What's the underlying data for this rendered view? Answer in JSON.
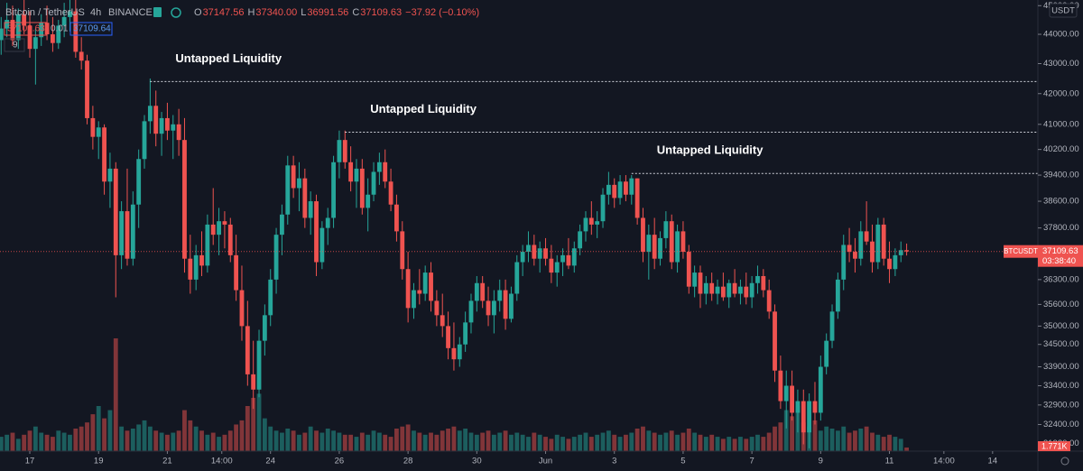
{
  "chart_data": {
    "type": "candlestick",
    "header": {
      "symbol": "Bitcoin / TetherUS",
      "interval": "4h",
      "exchange": "BINANCE",
      "ohlc_labels": [
        "O",
        "H",
        "L",
        "C"
      ],
      "ohlc_values": [
        "37147.56",
        "37340.00",
        "36991.56",
        "37109.63"
      ],
      "change": "−37.92 (−0.10%)",
      "bid": "37109.63",
      "spread": "0.01",
      "ask": "37109.64",
      "indicators": "9"
    },
    "currency": "USDT",
    "price_label": {
      "symbol": "BTCUSDT",
      "price": "37109.63",
      "countdown": "03:38:40"
    },
    "volume_label": "1.771K",
    "up_color": "#26a69a",
    "down_color": "#ef5350",
    "log_scale": true,
    "ylim": [
      31730,
      45200
    ],
    "xlim": [
      -0.2,
      180.9
    ],
    "vlim": [
      0,
      220
    ],
    "yticks": [
      {
        "value": 45000,
        "label": "45000.00"
      },
      {
        "value": 44000,
        "label": "44000.00"
      },
      {
        "value": 43000,
        "label": "43000.00"
      },
      {
        "value": 42000,
        "label": "42000.00"
      },
      {
        "value": 41000,
        "label": "41000.00"
      },
      {
        "value": 40200,
        "label": "40200.00"
      },
      {
        "value": 39400,
        "label": "39400.00"
      },
      {
        "value": 38600,
        "label": "38600.00"
      },
      {
        "value": 37800,
        "label": "37800.00"
      },
      {
        "value": 36300,
        "label": "36300.00"
      },
      {
        "value": 35600,
        "label": "35600.00"
      },
      {
        "value": 35000,
        "label": "35000.00"
      },
      {
        "value": 34500,
        "label": "34500.00"
      },
      {
        "value": 33900,
        "label": "33900.00"
      },
      {
        "value": 33400,
        "label": "33400.00"
      },
      {
        "value": 32900,
        "label": "32900.00"
      },
      {
        "value": 32400,
        "label": "32400.00"
      },
      {
        "value": 31920,
        "label": "31920.00"
      }
    ],
    "xticks": [
      {
        "value": 5,
        "label": "17"
      },
      {
        "value": 17,
        "label": "19"
      },
      {
        "value": 29,
        "label": "21"
      },
      {
        "value": 38.5,
        "label": "14:00"
      },
      {
        "value": 47,
        "label": "24"
      },
      {
        "value": 59,
        "label": "26"
      },
      {
        "value": 71,
        "label": "28"
      },
      {
        "value": 83,
        "label": "30"
      },
      {
        "value": 95,
        "label": "Jun"
      },
      {
        "value": 107,
        "label": "3"
      },
      {
        "value": 119,
        "label": "5"
      },
      {
        "value": 131,
        "label": "7"
      },
      {
        "value": 143,
        "label": "9"
      },
      {
        "value": 155,
        "label": "11"
      },
      {
        "value": 164.5,
        "label": "14:00"
      },
      {
        "value": 173,
        "label": "14"
      }
    ],
    "annotations": [
      {
        "text": "Untapped Liquidity",
        "level": 42400,
        "start": 26
      },
      {
        "text": "Untapped Liquidity",
        "level": 40750,
        "start": 60
      },
      {
        "text": "Untapped Liquidity",
        "level": 39450,
        "start": 110
      }
    ],
    "ohlc": [
      [
        43800,
        44600,
        43300,
        44200
      ],
      [
        44200,
        45100,
        43900,
        44500
      ],
      [
        44500,
        45000,
        43600,
        43800
      ],
      [
        43800,
        44900,
        43500,
        44700
      ],
      [
        44700,
        45200,
        44000,
        44300
      ],
      [
        44300,
        44800,
        43200,
        43500
      ],
      [
        43500,
        44200,
        42300,
        43900
      ],
      [
        43900,
        44700,
        43600,
        44400
      ],
      [
        44400,
        45000,
        43800,
        44000
      ],
      [
        44000,
        44600,
        43400,
        43700
      ],
      [
        43700,
        44500,
        43500,
        44300
      ],
      [
        44300,
        45100,
        43900,
        44600
      ],
      [
        44600,
        45200,
        44100,
        44800
      ],
      [
        44800,
        45200,
        43200,
        43400
      ],
      [
        43400,
        43900,
        42800,
        43100
      ],
      [
        43100,
        43300,
        41000,
        41200
      ],
      [
        41200,
        41600,
        40200,
        40600
      ],
      [
        40600,
        41100,
        39900,
        40900
      ],
      [
        40900,
        41000,
        38800,
        39200
      ],
      [
        39200,
        40100,
        38400,
        39600
      ],
      [
        39600,
        39800,
        35800,
        37000
      ],
      [
        37000,
        38600,
        36600,
        38300
      ],
      [
        38300,
        39600,
        36700,
        36900
      ],
      [
        36900,
        38900,
        36700,
        38500
      ],
      [
        38500,
        40200,
        37800,
        39900
      ],
      [
        39900,
        41300,
        39600,
        41100
      ],
      [
        41100,
        42500,
        40700,
        41600
      ],
      [
        41600,
        42100,
        40300,
        40700
      ],
      [
        40700,
        41400,
        40000,
        41200
      ],
      [
        41200,
        41700,
        40500,
        40800
      ],
      [
        40800,
        41300,
        39900,
        41000
      ],
      [
        41000,
        41500,
        40000,
        40500
      ],
      [
        40500,
        41200,
        36500,
        36900
      ],
      [
        36900,
        37600,
        35900,
        36300
      ],
      [
        36300,
        37300,
        36000,
        37000
      ],
      [
        37000,
        37700,
        36400,
        36700
      ],
      [
        36700,
        38200,
        36500,
        37900
      ],
      [
        37900,
        39000,
        37300,
        37600
      ],
      [
        37600,
        38400,
        37000,
        38000
      ],
      [
        38000,
        38300,
        37200,
        37900
      ],
      [
        37900,
        38100,
        36800,
        37000
      ],
      [
        37000,
        37600,
        35700,
        36000
      ],
      [
        36000,
        36700,
        34600,
        35000
      ],
      [
        35000,
        35700,
        33400,
        33700
      ],
      [
        33700,
        34600,
        32800,
        33300
      ],
      [
        33300,
        34900,
        33100,
        34600
      ],
      [
        34600,
        35600,
        34200,
        35300
      ],
      [
        35300,
        36600,
        35000,
        36300
      ],
      [
        36300,
        37800,
        35900,
        37600
      ],
      [
        37600,
        38500,
        37000,
        38200
      ],
      [
        38200,
        40000,
        37900,
        39700
      ],
      [
        39700,
        40000,
        38700,
        39000
      ],
      [
        39000,
        39800,
        38300,
        39300
      ],
      [
        39300,
        39600,
        37800,
        38100
      ],
      [
        38100,
        38900,
        37600,
        38600
      ],
      [
        38600,
        38800,
        36400,
        36800
      ],
      [
        36800,
        38000,
        36600,
        37800
      ],
      [
        37800,
        38400,
        37300,
        38100
      ],
      [
        38100,
        40000,
        37800,
        39800
      ],
      [
        39800,
        40800,
        39300,
        40500
      ],
      [
        40500,
        40800,
        39600,
        39800
      ],
      [
        39800,
        40300,
        38900,
        39200
      ],
      [
        39200,
        39900,
        38400,
        39600
      ],
      [
        39600,
        39900,
        38200,
        38400
      ],
      [
        38400,
        39300,
        37700,
        38800
      ],
      [
        38800,
        39800,
        38600,
        39500
      ],
      [
        39500,
        40100,
        39100,
        39800
      ],
      [
        39800,
        40200,
        39000,
        39200
      ],
      [
        39200,
        39600,
        38300,
        38500
      ],
      [
        38500,
        38800,
        37400,
        37700
      ],
      [
        37700,
        38000,
        36300,
        36600
      ],
      [
        36600,
        37100,
        35100,
        35500
      ],
      [
        35500,
        36200,
        35200,
        36000
      ],
      [
        36000,
        36600,
        35600,
        35900
      ],
      [
        35900,
        36700,
        35700,
        36500
      ],
      [
        36500,
        36800,
        35400,
        35700
      ],
      [
        35700,
        36000,
        35000,
        35300
      ],
      [
        35300,
        35900,
        34700,
        35000
      ],
      [
        35000,
        35400,
        34100,
        34400
      ],
      [
        34400,
        35100,
        33800,
        34100
      ],
      [
        34100,
        34700,
        33900,
        34500
      ],
      [
        34500,
        35400,
        34300,
        35100
      ],
      [
        35100,
        35900,
        34800,
        35700
      ],
      [
        35700,
        36400,
        35400,
        36200
      ],
      [
        36200,
        36400,
        35500,
        35700
      ],
      [
        35700,
        36100,
        35000,
        35300
      ],
      [
        35300,
        36000,
        34800,
        35700
      ],
      [
        35700,
        36300,
        35400,
        36000
      ],
      [
        36000,
        36300,
        34900,
        35200
      ],
      [
        35200,
        36100,
        35100,
        35900
      ],
      [
        35900,
        37000,
        35700,
        36800
      ],
      [
        36800,
        37300,
        36400,
        37100
      ],
      [
        37100,
        37700,
        36800,
        37300
      ],
      [
        37300,
        37600,
        36700,
        36900
      ],
      [
        36900,
        37400,
        36500,
        37200
      ],
      [
        37200,
        37500,
        36700,
        36900
      ],
      [
        36900,
        37300,
        36200,
        36500
      ],
      [
        36500,
        37000,
        36100,
        36800
      ],
      [
        36800,
        37200,
        36400,
        37000
      ],
      [
        37000,
        37500,
        36600,
        36700
      ],
      [
        36700,
        37400,
        36500,
        37200
      ],
      [
        37200,
        37900,
        37000,
        37700
      ],
      [
        37700,
        38300,
        37400,
        38100
      ],
      [
        38100,
        38600,
        37600,
        37900
      ],
      [
        37900,
        38300,
        37500,
        38000
      ],
      [
        38000,
        39000,
        37800,
        38800
      ],
      [
        38800,
        39500,
        38500,
        39100
      ],
      [
        39100,
        39300,
        38400,
        38700
      ],
      [
        38700,
        39400,
        38500,
        39200
      ],
      [
        39200,
        39400,
        38600,
        38800
      ],
      [
        38800,
        39400,
        38500,
        39300
      ],
      [
        39300,
        39300,
        37900,
        38100
      ],
      [
        38100,
        38400,
        36800,
        37100
      ],
      [
        37100,
        37900,
        36300,
        37600
      ],
      [
        37600,
        38100,
        36600,
        36900
      ],
      [
        36900,
        37700,
        36700,
        37500
      ],
      [
        37500,
        38300,
        37200,
        38000
      ],
      [
        38000,
        38200,
        36600,
        36800
      ],
      [
        36800,
        37900,
        36500,
        37700
      ],
      [
        37700,
        38000,
        36900,
        37100
      ],
      [
        37100,
        37300,
        35900,
        36100
      ],
      [
        36100,
        36700,
        35800,
        36500
      ],
      [
        36500,
        36700,
        35500,
        35900
      ],
      [
        35900,
        36400,
        35600,
        36200
      ],
      [
        36200,
        36500,
        35700,
        35900
      ],
      [
        35900,
        36300,
        35600,
        36100
      ],
      [
        36100,
        36500,
        35700,
        35800
      ],
      [
        35800,
        36300,
        35500,
        36200
      ],
      [
        36200,
        36600,
        35800,
        35900
      ],
      [
        35900,
        36300,
        35600,
        36100
      ],
      [
        36100,
        36500,
        35600,
        35800
      ],
      [
        35800,
        36400,
        35500,
        36200
      ],
      [
        36200,
        36700,
        35900,
        36400
      ],
      [
        36400,
        36600,
        35800,
        36000
      ],
      [
        36000,
        36300,
        35200,
        35400
      ],
      [
        35400,
        35600,
        33500,
        33800
      ],
      [
        33800,
        34200,
        32800,
        33000
      ],
      [
        33000,
        33800,
        32300,
        33400
      ],
      [
        33400,
        33800,
        32500,
        32700
      ],
      [
        32700,
        33300,
        32200,
        33000
      ],
      [
        33000,
        33300,
        31900,
        32200
      ],
      [
        32200,
        33200,
        31800,
        33000
      ],
      [
        33000,
        33500,
        32400,
        32700
      ],
      [
        32700,
        34200,
        32500,
        33900
      ],
      [
        33900,
        34800,
        33700,
        34600
      ],
      [
        34600,
        35600,
        34400,
        35400
      ],
      [
        35400,
        36500,
        35200,
        36300
      ],
      [
        36300,
        37600,
        36000,
        37300
      ],
      [
        37300,
        37800,
        36800,
        37100
      ],
      [
        37100,
        37500,
        36500,
        36900
      ],
      [
        36900,
        38000,
        36700,
        37700
      ],
      [
        37700,
        38600,
        37300,
        37400
      ],
      [
        37400,
        37900,
        36500,
        36800
      ],
      [
        36800,
        38100,
        36600,
        37900
      ],
      [
        37900,
        38100,
        36700,
        36900
      ],
      [
        36900,
        37400,
        36200,
        36600
      ],
      [
        36600,
        37200,
        36400,
        37000
      ],
      [
        37000,
        37400,
        36800,
        37147.56
      ],
      [
        37147.56,
        37340,
        36991.56,
        37109.63
      ]
    ],
    "volume": [
      7,
      8,
      9,
      6,
      8,
      10,
      12,
      9,
      8,
      7,
      10,
      9,
      8,
      11,
      12,
      14,
      18,
      22,
      16,
      20,
      55,
      12,
      10,
      11,
      13,
      15,
      12,
      10,
      9,
      8,
      9,
      10,
      20,
      15,
      12,
      10,
      8,
      9,
      7,
      8,
      10,
      13,
      15,
      22,
      26,
      28,
      16,
      12,
      10,
      9,
      11,
      10,
      8,
      9,
      12,
      10,
      9,
      11,
      10,
      9,
      8,
      8,
      7,
      9,
      8,
      10,
      9,
      8,
      7,
      11,
      12,
      13,
      10,
      9,
      8,
      9,
      8,
      10,
      11,
      12,
      10,
      11,
      9,
      8,
      9,
      10,
      8,
      9,
      10,
      8,
      9,
      8,
      7,
      9,
      8,
      7,
      6,
      8,
      7,
      6,
      7,
      8,
      9,
      7,
      8,
      9,
      10,
      8,
      7,
      8,
      9,
      11,
      12,
      10,
      9,
      8,
      9,
      10,
      8,
      9,
      11,
      9,
      8,
      7,
      8,
      7,
      6,
      7,
      6,
      7,
      6,
      7,
      8,
      7,
      9,
      12,
      14,
      20,
      17,
      22,
      14,
      12,
      15,
      10,
      12,
      11,
      10,
      12,
      9,
      10,
      11,
      12,
      9,
      8,
      7,
      8,
      7,
      6,
      1.771
    ]
  }
}
